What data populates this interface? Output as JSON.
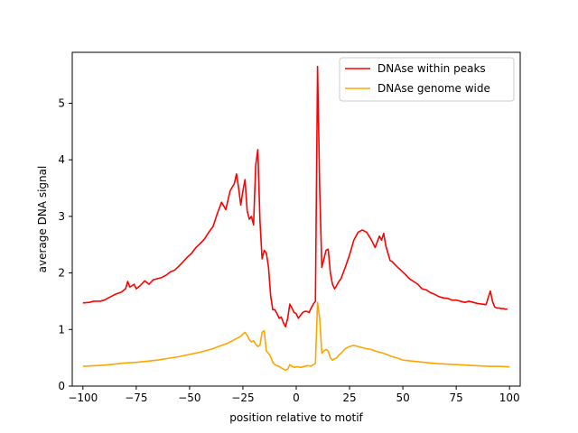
{
  "chart_data": {
    "type": "line",
    "xlabel": "position relative to motif",
    "ylabel": "average DNA signal",
    "xlim": [
      -105,
      105
    ],
    "ylim": [
      0,
      5.9
    ],
    "xticks": [
      -100,
      -75,
      -50,
      -25,
      0,
      25,
      50,
      75,
      100
    ],
    "xtick_labels": [
      "−100",
      "−75",
      "−50",
      "−25",
      "0",
      "25",
      "50",
      "75",
      "100"
    ],
    "yticks": [
      0,
      1,
      2,
      3,
      4,
      5
    ],
    "ytick_labels": [
      "0",
      "1",
      "2",
      "3",
      "4",
      "5"
    ],
    "grid": false,
    "legend_position": "top-right",
    "series": [
      {
        "name": "DNAse within peaks",
        "color": "#ff0000",
        "x": [
          -100,
          -97,
          -95,
          -92,
          -90,
          -87,
          -85,
          -82,
          -80,
          -79,
          -78,
          -76,
          -75,
          -73,
          -71,
          -69,
          -67,
          -65,
          -63,
          -61,
          -59,
          -57,
          -55,
          -53,
          -51,
          -49,
          -47,
          -45,
          -43,
          -41,
          -39,
          -37,
          -35,
          -33,
          -31,
          -29,
          -28,
          -27,
          -26,
          -25,
          -24,
          -23,
          -22,
          -21,
          -20,
          -19,
          -18,
          -17,
          -16,
          -15,
          -14,
          -13,
          -12,
          -11,
          -10,
          -9,
          -8,
          -7,
          -6,
          -5,
          -4,
          -3,
          -2,
          -1,
          0,
          1,
          2,
          3,
          4,
          5,
          6,
          7,
          8,
          9,
          10,
          11,
          12,
          13,
          14,
          15,
          16,
          17,
          18,
          19,
          20,
          21,
          22,
          23,
          25,
          27,
          29,
          31,
          33,
          35,
          37,
          39,
          40,
          41,
          42,
          43,
          44,
          45,
          47,
          49,
          51,
          53,
          55,
          57,
          59,
          61,
          63,
          65,
          67,
          69,
          71,
          73,
          75,
          77,
          79,
          81,
          83,
          85,
          87,
          89,
          91,
          92,
          93,
          94,
          95,
          96,
          97,
          98,
          99
        ],
        "y": [
          1.47,
          1.48,
          1.5,
          1.5,
          1.52,
          1.58,
          1.62,
          1.66,
          1.72,
          1.85,
          1.75,
          1.8,
          1.72,
          1.78,
          1.86,
          1.8,
          1.88,
          1.9,
          1.92,
          1.96,
          2.02,
          2.05,
          2.12,
          2.2,
          2.28,
          2.35,
          2.45,
          2.52,
          2.6,
          2.72,
          2.82,
          3.05,
          3.25,
          3.12,
          3.45,
          3.58,
          3.75,
          3.5,
          3.2,
          3.45,
          3.65,
          3.1,
          2.95,
          3.0,
          2.85,
          3.9,
          4.18,
          2.92,
          2.25,
          2.4,
          2.35,
          2.1,
          1.6,
          1.35,
          1.35,
          1.28,
          1.2,
          1.22,
          1.12,
          1.05,
          1.2,
          1.45,
          1.38,
          1.3,
          1.28,
          1.2,
          1.25,
          1.3,
          1.32,
          1.32,
          1.3,
          1.38,
          1.45,
          1.5,
          5.65,
          3.5,
          2.1,
          2.25,
          2.4,
          2.42,
          2.0,
          1.8,
          1.72,
          1.78,
          1.85,
          1.9,
          2.0,
          2.1,
          2.32,
          2.58,
          2.72,
          2.76,
          2.72,
          2.6,
          2.45,
          2.65,
          2.58,
          2.7,
          2.48,
          2.35,
          2.22,
          2.2,
          2.12,
          2.05,
          1.98,
          1.9,
          1.85,
          1.8,
          1.72,
          1.7,
          1.65,
          1.62,
          1.58,
          1.56,
          1.55,
          1.52,
          1.52,
          1.5,
          1.48,
          1.5,
          1.48,
          1.46,
          1.45,
          1.44,
          1.68,
          1.5,
          1.4,
          1.38,
          1.38,
          1.37,
          1.37,
          1.36,
          1.36
        ],
        "x_full_note": ""
      },
      {
        "name": "DNAse genome wide",
        "color": "#ffa500",
        "x": [
          -100,
          -95,
          -90,
          -85,
          -80,
          -75,
          -70,
          -65,
          -60,
          -55,
          -50,
          -45,
          -40,
          -35,
          -32,
          -30,
          -28,
          -26,
          -25,
          -24,
          -23,
          -22,
          -21,
          -20,
          -19,
          -18,
          -17,
          -16,
          -15,
          -14,
          -13,
          -12,
          -11,
          -10,
          -9,
          -8,
          -7,
          -6,
          -5,
          -4,
          -3,
          -2,
          -1,
          0,
          1,
          2,
          3,
          4,
          5,
          6,
          7,
          8,
          9,
          10,
          11,
          12,
          13,
          14,
          15,
          16,
          17,
          18,
          19,
          20,
          21,
          22,
          23,
          25,
          27,
          29,
          31,
          33,
          35,
          37,
          39,
          41,
          43,
          45,
          47,
          50,
          55,
          60,
          65,
          70,
          75,
          80,
          85,
          90,
          95,
          100
        ],
        "y": [
          0.35,
          0.36,
          0.37,
          0.39,
          0.41,
          0.42,
          0.44,
          0.46,
          0.49,
          0.52,
          0.56,
          0.6,
          0.65,
          0.72,
          0.76,
          0.8,
          0.84,
          0.88,
          0.92,
          0.95,
          0.9,
          0.82,
          0.78,
          0.8,
          0.74,
          0.7,
          0.72,
          0.95,
          0.98,
          0.62,
          0.58,
          0.52,
          0.42,
          0.38,
          0.36,
          0.35,
          0.32,
          0.3,
          0.28,
          0.3,
          0.38,
          0.35,
          0.33,
          0.34,
          0.34,
          0.33,
          0.34,
          0.35,
          0.36,
          0.36,
          0.35,
          0.38,
          0.4,
          1.48,
          1.2,
          0.58,
          0.62,
          0.65,
          0.62,
          0.5,
          0.46,
          0.48,
          0.5,
          0.55,
          0.58,
          0.62,
          0.66,
          0.7,
          0.72,
          0.7,
          0.68,
          0.66,
          0.65,
          0.62,
          0.6,
          0.58,
          0.55,
          0.52,
          0.5,
          0.46,
          0.44,
          0.42,
          0.4,
          0.39,
          0.38,
          0.37,
          0.36,
          0.35,
          0.35,
          0.34
        ]
      }
    ]
  }
}
